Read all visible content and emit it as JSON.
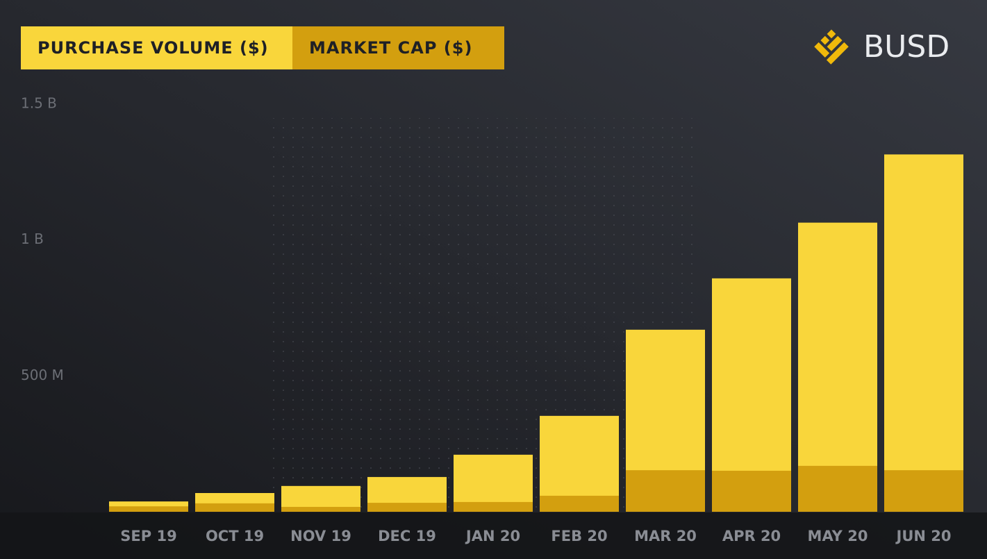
{
  "chart_data": {
    "type": "bar",
    "brand": "BUSD",
    "categories": [
      "SEP 19",
      "OCT 19",
      "NOV 19",
      "DEC 19",
      "JAN 20",
      "FEB 20",
      "MAR 20",
      "APR 20",
      "MAY 20",
      "JUN 20"
    ],
    "series": [
      {
        "name": "PURCHASE VOLUME ($)",
        "color": "#f9d63b",
        "values": [
          38000000,
          69000000,
          95000000,
          128000000,
          210000000,
          353000000,
          670000000,
          859000000,
          1064000000,
          1315000000
        ]
      },
      {
        "name": "MARKET CAP ($)",
        "color": "#d39f0f",
        "values": [
          20000000,
          31000000,
          18000000,
          33000000,
          36000000,
          59000000,
          153000000,
          151000000,
          169000000,
          153000000
        ]
      }
    ],
    "ylim": [
      0,
      1500000000
    ],
    "yticks": [
      {
        "value": 500000000,
        "label": "500 M"
      },
      {
        "value": 1000000000,
        "label": "1 B"
      },
      {
        "value": 1500000000,
        "label": "1.5 B"
      }
    ],
    "grid": true
  }
}
